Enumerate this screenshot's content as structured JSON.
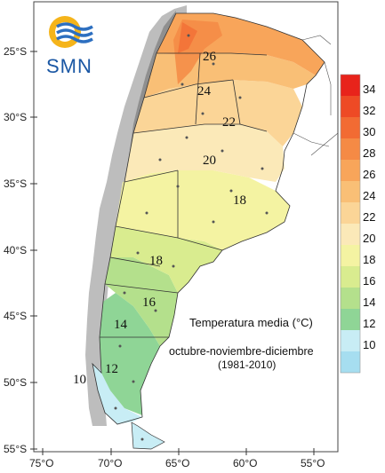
{
  "logo": {
    "text": "SMN"
  },
  "caption": {
    "title": "Temperatura media (°C)",
    "period": "octubre-noviembre-diciembre",
    "years": "(1981-2010)"
  },
  "axes": {
    "lat_labels": [
      "25°S",
      "30°S",
      "35°S",
      "40°S",
      "45°S",
      "50°S",
      "55°S"
    ],
    "lon_labels": [
      "75°O",
      "70°O",
      "65°O",
      "60°O",
      "55°O"
    ]
  },
  "contour_labels": [
    "26",
    "24",
    "22",
    "20",
    "18",
    "18",
    "16",
    "14",
    "12",
    "10"
  ],
  "legend": {
    "items": [
      {
        "label": "34",
        "color": "#e8231b"
      },
      {
        "label": "32",
        "color": "#ee4a25"
      },
      {
        "label": "30",
        "color": "#f26b33"
      },
      {
        "label": "28",
        "color": "#f58a45"
      },
      {
        "label": "26",
        "color": "#f8a55a"
      },
      {
        "label": "24",
        "color": "#f9bf76"
      },
      {
        "label": "22",
        "color": "#fbd597"
      },
      {
        "label": "20",
        "color": "#fbe9b8"
      },
      {
        "label": "18",
        "color": "#f4f3a2"
      },
      {
        "label": "16",
        "color": "#d9ec8f"
      },
      {
        "label": "14",
        "color": "#b4e08c"
      },
      {
        "label": "12",
        "color": "#8fd596"
      },
      {
        "label": "10",
        "color": "#c8edf5"
      },
      {
        "label": "",
        "color": "#a6def0"
      }
    ]
  }
}
